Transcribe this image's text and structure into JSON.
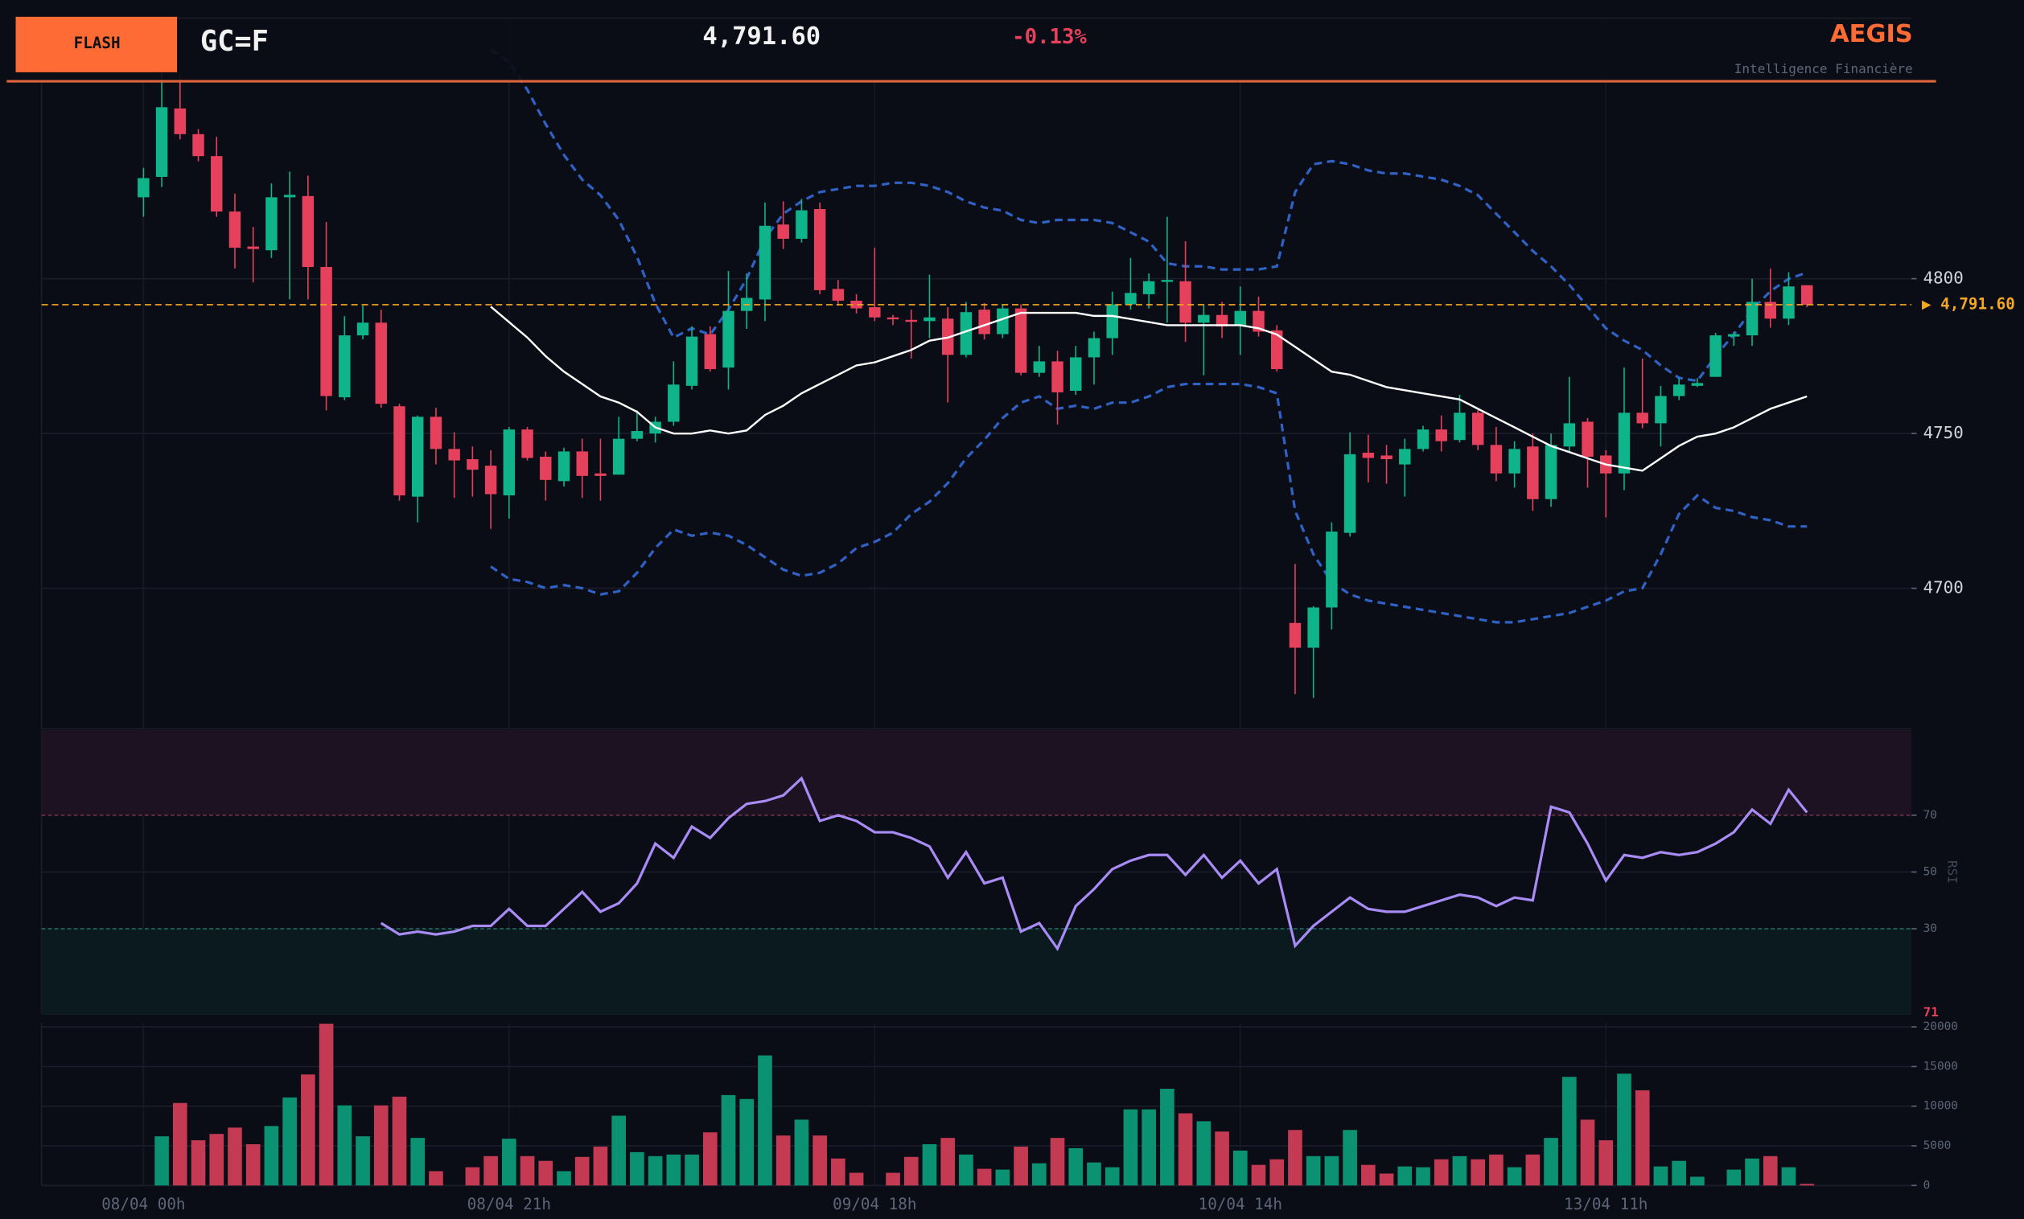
{
  "header": {
    "badge": "FLASH",
    "symbol": "GC=F",
    "price": "4,791.60",
    "change": "-0.13%",
    "brand": "AEGIS",
    "tagline": "Intelligence Financière"
  },
  "chart_data": [
    {
      "type": "candlestick",
      "categories": [
        "08/04 00h",
        null,
        null,
        null,
        null,
        null,
        null,
        null,
        null,
        null,
        null,
        null,
        null,
        null,
        null,
        null,
        null,
        null,
        null,
        null,
        "08/04 21h",
        null,
        null,
        null,
        null,
        null,
        null,
        null,
        null,
        null,
        null,
        null,
        null,
        null,
        null,
        null,
        null,
        null,
        null,
        null,
        "09/04 18h",
        null,
        null,
        null,
        null,
        null,
        null,
        null,
        null,
        null,
        null,
        null,
        null,
        null,
        null,
        null,
        null,
        null,
        null,
        null,
        "10/04 14h",
        null,
        null,
        null,
        null,
        null,
        null,
        null,
        null,
        null,
        null,
        null,
        null,
        null,
        null,
        null,
        null,
        null,
        null,
        null,
        "13/04 11h",
        null,
        null,
        null,
        null,
        null,
        null,
        null,
        null,
        null,
        null,
        null
      ],
      "open": [
        4826.3,
        4832.9,
        4855,
        4846.7,
        4839.6,
        4821.7,
        4810.4,
        4809.2,
        4826.3,
        4826.7,
        4803.8,
        4761.7,
        4781.7,
        4785.8,
        4758.8,
        4729.6,
        4755.4,
        4745,
        4741.7,
        4739.6,
        4730,
        4751.3,
        4742.5,
        4734.6,
        4744.2,
        4737.1,
        4736.7,
        4748.3,
        4750,
        4753.8,
        4765.4,
        4782.1,
        4771.3,
        4789.6,
        4793.3,
        4817.5,
        4812.9,
        4822.5,
        4796.7,
        4792.9,
        4790.8,
        4787.5,
        4786.7,
        4786.3,
        4787.1,
        4775.4,
        4790,
        4782.1,
        4790.4,
        4769.6,
        4773.3,
        4763.8,
        4774.6,
        4780.8,
        4791.7,
        4795,
        4799.2,
        4799.2,
        4785.8,
        4788.3,
        4785,
        4789.6,
        4783.3,
        4688.8,
        4680.8,
        4693.8,
        4717.9,
        4743.8,
        4742.9,
        4740,
        4745,
        4751.3,
        4747.9,
        4756.7,
        4746.3,
        4737.1,
        4745.8,
        4728.8,
        4745.8,
        4753.8,
        4742.9,
        4737.1,
        4756.7,
        4753.3,
        4762.1,
        4765.4,
        4768.3,
        4781.3,
        4781.7,
        4792.5,
        4787.1,
        4797.9
      ],
      "high": [
        4835.8,
        4867,
        4866,
        4848.3,
        4845.8,
        4827.5,
        4816.7,
        4830.8,
        4834.6,
        4833.3,
        4818.3,
        4787.9,
        4791.3,
        4790,
        4759.6,
        4755.8,
        4758.3,
        4750.4,
        4745.8,
        4744.6,
        4752.1,
        4752.1,
        4744.2,
        4745.4,
        4748.3,
        4748.3,
        4755.4,
        4757.5,
        4755.4,
        4773.3,
        4784.6,
        4784.6,
        4802.5,
        4801.7,
        4824.6,
        4825,
        4825.8,
        4824.6,
        4799.6,
        4795,
        4810,
        4788.3,
        4790,
        4801.3,
        4790.8,
        4792.5,
        4792.1,
        4791.7,
        4791.7,
        4778.3,
        4776.7,
        4778.3,
        4782.9,
        4795.8,
        4806.7,
        4801.7,
        4820,
        4812.1,
        4791.7,
        4792.5,
        4797.5,
        4794.2,
        4785,
        4707.9,
        4694.2,
        4721.3,
        4750.4,
        4749.6,
        4746.3,
        4748.3,
        4752.5,
        4755.8,
        4762.5,
        4757.5,
        4752.1,
        4747.5,
        4750,
        4750,
        4768.3,
        4755,
        4744.6,
        4771.3,
        4774.2,
        4765.4,
        4767.9,
        4767.9,
        4782.5,
        4782.9,
        4800,
        4803.3,
        4802.1,
        4797.9
      ],
      "low": [
        4820,
        4829.6,
        4845,
        4837.9,
        4820,
        4803.3,
        4798.8,
        4806.7,
        4793.3,
        4793.3,
        4757.5,
        4760.8,
        4780.4,
        4758.3,
        4728.3,
        4721.3,
        4740,
        4729.2,
        4729.6,
        4719.2,
        4722.5,
        4741.3,
        4728.3,
        4732.9,
        4729.2,
        4728.3,
        4736.7,
        4747.5,
        4747.1,
        4752.5,
        4764.2,
        4770,
        4764.2,
        4783.8,
        4786.3,
        4809.6,
        4811.7,
        4795,
        4791.3,
        4788.8,
        4786.3,
        4785,
        4774.2,
        4780.8,
        4760,
        4774.6,
        4780.4,
        4780.8,
        4768.8,
        4768.3,
        4752.9,
        4762.5,
        4765.8,
        4775.4,
        4790,
        4790.4,
        4785.8,
        4779.6,
        4768.8,
        4780.8,
        4775.4,
        4781.3,
        4770,
        4665.8,
        4664.6,
        4686.7,
        4716.7,
        4734.2,
        4733.8,
        4729.6,
        4744.2,
        4744.2,
        4747.1,
        4744.6,
        4734.6,
        4732.5,
        4725,
        4726.3,
        4744.2,
        4732.5,
        4722.9,
        4731.7,
        4751.7,
        4745.8,
        4760.8,
        4765,
        4768.3,
        4778.3,
        4778.3,
        4784.2,
        4785,
        4790.8
      ],
      "close": [
        4832.5,
        4855.4,
        4846.7,
        4839.6,
        4821.7,
        4810,
        4809.6,
        4826.3,
        4827.1,
        4803.8,
        4762.1,
        4781.7,
        4785.8,
        4759.6,
        4730,
        4755.4,
        4745,
        4741.3,
        4738.3,
        4730.4,
        4751.3,
        4742.1,
        4735,
        4744.2,
        4736.3,
        4736.3,
        4748.3,
        4750.8,
        4753.8,
        4765.8,
        4781.3,
        4770.8,
        4789.6,
        4793.8,
        4817.1,
        4812.9,
        4822.1,
        4796.3,
        4792.9,
        4790.4,
        4787.5,
        4787.1,
        4786.3,
        4787.5,
        4775.4,
        4789.2,
        4782.1,
        4790.4,
        4769.6,
        4773.3,
        4763.3,
        4774.6,
        4780.8,
        4791.7,
        4795.4,
        4799.2,
        4799.6,
        4785.8,
        4788.3,
        4784.6,
        4789.6,
        4782.9,
        4770.8,
        4680.8,
        4693.8,
        4718.3,
        4743.3,
        4742.1,
        4741.7,
        4745,
        4751.3,
        4747.5,
        4756.7,
        4746.3,
        4737.1,
        4745,
        4728.8,
        4746.3,
        4753.3,
        4742.5,
        4737.1,
        4756.7,
        4753.3,
        4762.1,
        4765.8,
        4766.3,
        4781.7,
        4782.1,
        4792.5,
        4787.1,
        4797.5,
        4791.6
      ],
      "sma": [
        null,
        null,
        null,
        null,
        null,
        null,
        null,
        null,
        null,
        null,
        null,
        null,
        null,
        null,
        null,
        null,
        null,
        null,
        null,
        4791,
        4786,
        4781,
        4775,
        4770,
        4766,
        4762,
        4760,
        4757,
        4752,
        4750,
        4750,
        4751,
        4750,
        4751,
        4756,
        4759,
        4763,
        4766,
        4769,
        4772,
        4773,
        4775,
        4777,
        4780,
        4781,
        4783,
        4785,
        4787,
        4789,
        4789,
        4789,
        4789,
        4788,
        4788,
        4787,
        4786,
        4785,
        4785,
        4785,
        4785,
        4785,
        4784,
        4782,
        4778,
        4774,
        4770,
        4769,
        4767,
        4765,
        4764,
        4763,
        4762,
        4761,
        4758,
        4755,
        4752,
        4749,
        4746,
        4744,
        4742,
        4740,
        4739,
        4738,
        4742,
        4746,
        4749,
        4750,
        4752,
        4755,
        4758,
        4760,
        4762
      ],
      "band_upper": [
        null,
        null,
        null,
        null,
        null,
        null,
        null,
        null,
        null,
        null,
        null,
        null,
        null,
        null,
        null,
        null,
        null,
        null,
        null,
        4874,
        4870,
        4861,
        4850,
        4840,
        4832,
        4827,
        4819,
        4807,
        4792,
        4781,
        4784,
        4782,
        4790,
        4800,
        4813,
        4821,
        4825,
        4828,
        4829,
        4830,
        4830,
        4831,
        4831,
        4830,
        4828,
        4825,
        4823,
        4822,
        4819,
        4818,
        4819,
        4819,
        4819,
        4818,
        4815,
        4812,
        4805,
        4804,
        4804,
        4803,
        4803,
        4803,
        4804,
        4828,
        4837,
        4838,
        4837,
        4835,
        4834,
        4834,
        4833,
        4832,
        4830,
        4827,
        4821,
        4815,
        4809,
        4804,
        4798,
        4791,
        4784,
        4780,
        4777,
        4772,
        4768,
        4767,
        4775,
        4782,
        4790,
        4796,
        4800,
        4802
      ],
      "band_lower": [
        null,
        null,
        null,
        null,
        null,
        null,
        null,
        null,
        null,
        null,
        null,
        null,
        null,
        null,
        null,
        null,
        null,
        null,
        null,
        4707,
        4703,
        4702,
        4700,
        4701,
        4700,
        4698,
        4699,
        4705,
        4713,
        4719,
        4717,
        4718,
        4717,
        4714,
        4710,
        4706,
        4704,
        4705,
        4708,
        4713,
        4715,
        4718,
        4724,
        4728,
        4734,
        4742,
        4748,
        4755,
        4760,
        4762,
        4758,
        4759,
        4758,
        4760,
        4760,
        4762,
        4765,
        4766,
        4766,
        4766,
        4766,
        4765,
        4763,
        4725,
        4711,
        4702,
        4698,
        4696,
        4695,
        4694,
        4693,
        4692,
        4691,
        4690,
        4689,
        4689,
        4690,
        4691,
        4692,
        4694,
        4696,
        4699,
        4700,
        4711,
        4724,
        4730,
        4726,
        4725,
        4723,
        4722,
        4720,
        4720
      ],
      "up_color": "#10b48a",
      "down_color": "#e6415c",
      "sma_color": "#ffffff",
      "band_color": "#2f62c4",
      "ylim": [
        4654.6,
        4884.2
      ],
      "yticks": [
        4700,
        4750,
        4800
      ],
      "grid": true,
      "last_price": {
        "value": 4791.6,
        "label": "▶ 4,791.60"
      },
      "last_color": "#f5a623"
    },
    {
      "type": "line",
      "y_label": "RSI",
      "values": [
        null,
        null,
        null,
        null,
        null,
        null,
        null,
        null,
        null,
        null,
        null,
        null,
        null,
        32,
        28,
        29,
        28,
        29,
        31,
        31,
        37,
        31,
        31,
        37,
        43,
        36,
        39,
        46,
        60,
        55,
        66,
        62,
        69,
        74,
        75,
        77,
        83,
        68,
        70,
        68,
        64,
        64,
        62,
        59,
        48,
        57,
        46,
        48,
        29,
        32,
        23,
        38,
        44,
        51,
        54,
        56,
        56,
        49,
        56,
        48,
        54,
        46,
        51,
        24,
        31,
        36,
        41,
        37,
        36,
        36,
        38,
        40,
        42,
        41,
        38,
        41,
        40,
        73,
        71,
        60,
        47,
        56,
        55,
        57,
        56,
        57,
        60,
        64,
        72,
        67,
        79,
        71
      ],
      "color": "#a98bf5",
      "ylim": [
        0,
        100
      ],
      "yticks": [
        30,
        50,
        70
      ],
      "current": 71,
      "current_color": "#e6415c"
    },
    {
      "type": "bar",
      "values": [
        null,
        6200,
        10400,
        5700,
        6500,
        7300,
        5200,
        7500,
        11100,
        14000,
        20400,
        10100,
        6200,
        10100,
        11200,
        6000,
        1800,
        null,
        2300,
        3700,
        5900,
        3700,
        3100,
        1800,
        3600,
        4900,
        8800,
        4200,
        3700,
        3900,
        3900,
        6700,
        11400,
        10900,
        16400,
        6300,
        8300,
        6300,
        3400,
        1600,
        null,
        1600,
        3600,
        5200,
        6000,
        3900,
        2100,
        2000,
        4900,
        2800,
        6000,
        4700,
        2900,
        2300,
        9600,
        9600,
        12200,
        9100,
        8100,
        6800,
        4400,
        2600,
        3300,
        7000,
        3700,
        3700,
        7000,
        2600,
        1500,
        2400,
        2300,
        3300,
        3700,
        3300,
        3900,
        2300,
        3900,
        6000,
        13700,
        8300,
        5700,
        14100,
        12000,
        2400,
        3100,
        1100,
        null,
        2000,
        3400,
        3700,
        2300,
        200
      ],
      "up_color": "#0b9272",
      "down_color": "#c33a52",
      "ylim": [
        0,
        20500
      ],
      "yticks": [
        0,
        5000,
        10000,
        15000,
        20000
      ]
    }
  ]
}
